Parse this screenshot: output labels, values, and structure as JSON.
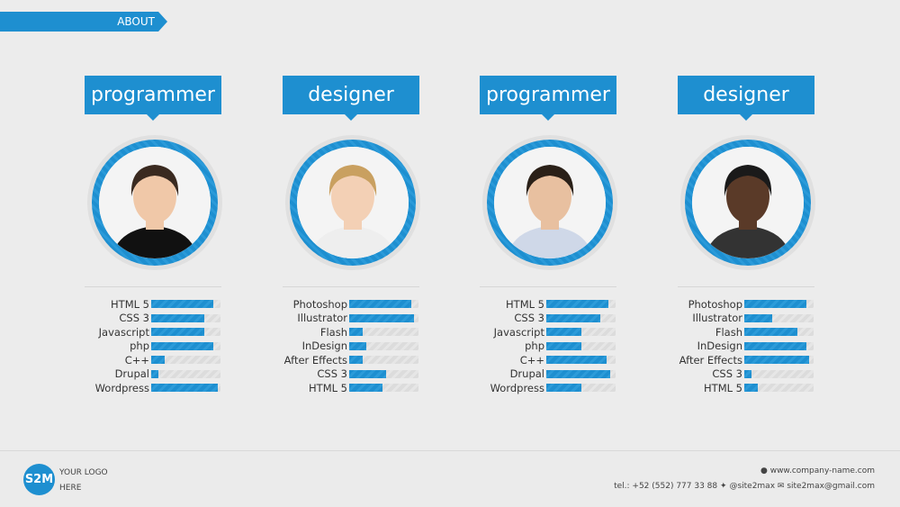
{
  "header": {
    "section_label": "ABOUT"
  },
  "accent": "#1e8fd0",
  "cards": [
    {
      "role": "programmer",
      "skills": [
        {
          "name": "HTML 5",
          "level": 90
        },
        {
          "name": "CSS 3",
          "level": 77
        },
        {
          "name": "Javascript",
          "level": 77
        },
        {
          "name": "php",
          "level": 90
        },
        {
          "name": "C++",
          "level": 20
        },
        {
          "name": "Drupal",
          "level": 10
        },
        {
          "name": "Wordpress",
          "level": 96
        }
      ]
    },
    {
      "role": "designer",
      "skills": [
        {
          "name": "Photoshop",
          "level": 90
        },
        {
          "name": "Illustrator",
          "level": 94
        },
        {
          "name": "Flash",
          "level": 20
        },
        {
          "name": "InDesign",
          "level": 25
        },
        {
          "name": "After Effects",
          "level": 20
        },
        {
          "name": "CSS 3",
          "level": 53
        },
        {
          "name": "HTML 5",
          "level": 48
        }
      ]
    },
    {
      "role": "programmer",
      "skills": [
        {
          "name": "HTML 5",
          "level": 90
        },
        {
          "name": "CSS 3",
          "level": 78
        },
        {
          "name": "Javascript",
          "level": 50
        },
        {
          "name": "php",
          "level": 50
        },
        {
          "name": "C++",
          "level": 87
        },
        {
          "name": "Drupal",
          "level": 92
        },
        {
          "name": "Wordpress",
          "level": 50
        }
      ]
    },
    {
      "role": "designer",
      "skills": [
        {
          "name": "Photoshop",
          "level": 89
        },
        {
          "name": "Illustrator",
          "level": 40
        },
        {
          "name": "Flash",
          "level": 77
        },
        {
          "name": "InDesign",
          "level": 89
        },
        {
          "name": "After Effects",
          "level": 93
        },
        {
          "name": "CSS 3",
          "level": 10
        },
        {
          "name": "HTML 5",
          "level": 19
        }
      ]
    }
  ],
  "footer": {
    "logo": "S2M",
    "logo_line1": "YOUR LOGO",
    "logo_line2": "HERE",
    "website": "www.company-name.com",
    "tel": "tel.: +52 (552) 777 33 88",
    "twitter": "@site2max",
    "email": "site2max@gmail.com"
  }
}
